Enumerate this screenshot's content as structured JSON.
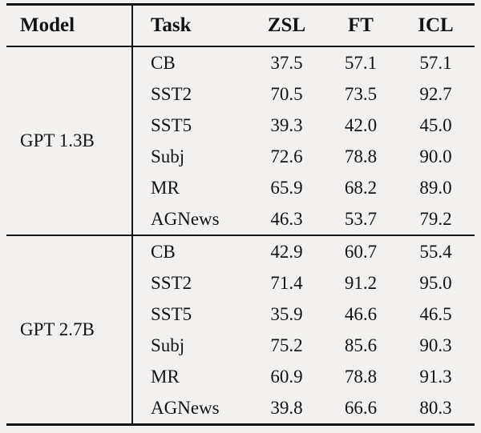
{
  "table": {
    "columns": {
      "model": "Model",
      "task": "Task",
      "zsl": "ZSL",
      "ft": "FT",
      "icl": "ICL"
    },
    "sections": [
      {
        "model": "GPT 1.3B",
        "rows": [
          {
            "task": "CB",
            "zsl": "37.5",
            "ft": "57.1",
            "icl": "57.1"
          },
          {
            "task": "SST2",
            "zsl": "70.5",
            "ft": "73.5",
            "icl": "92.7"
          },
          {
            "task": "SST5",
            "zsl": "39.3",
            "ft": "42.0",
            "icl": "45.0"
          },
          {
            "task": "Subj",
            "zsl": "72.6",
            "ft": "78.8",
            "icl": "90.0"
          },
          {
            "task": "MR",
            "zsl": "65.9",
            "ft": "68.2",
            "icl": "89.0"
          },
          {
            "task": "AGNews",
            "zsl": "46.3",
            "ft": "53.7",
            "icl": "79.2"
          }
        ]
      },
      {
        "model": "GPT 2.7B",
        "rows": [
          {
            "task": "CB",
            "zsl": "42.9",
            "ft": "60.7",
            "icl": "55.4"
          },
          {
            "task": "SST2",
            "zsl": "71.4",
            "ft": "91.2",
            "icl": "95.0"
          },
          {
            "task": "SST5",
            "zsl": "35.9",
            "ft": "46.6",
            "icl": "46.5"
          },
          {
            "task": "Subj",
            "zsl": "75.2",
            "ft": "85.6",
            "icl": "90.3"
          },
          {
            "task": "MR",
            "zsl": "60.9",
            "ft": "78.8",
            "icl": "91.3"
          },
          {
            "task": "AGNews",
            "zsl": "39.8",
            "ft": "66.6",
            "icl": "80.3"
          }
        ]
      }
    ]
  },
  "colors": {
    "background": "#f2f1ef",
    "rule": "#141414",
    "text": "#121212"
  }
}
